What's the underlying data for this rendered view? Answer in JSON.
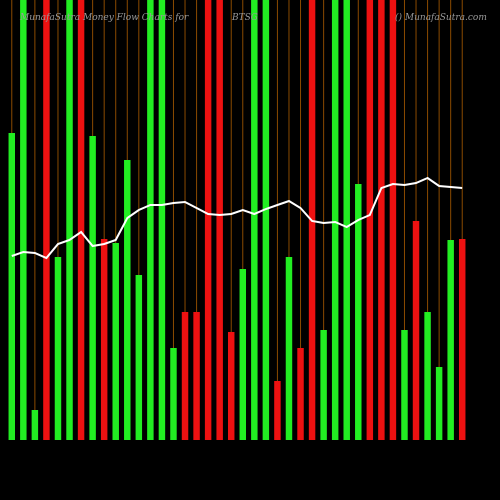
{
  "chart_data": {
    "type": "bar",
    "title": "MunafaSutra Money Flow Charts for",
    "subtitle": "BTSG",
    "source": "() MunafaSutra.com",
    "ylim": [
      0,
      440
    ],
    "grid": true,
    "grid_color": "#8a4a00",
    "line_color": "#ffffff",
    "series": [
      {
        "name": "Money Flow",
        "colors": [
          "#22ee22",
          "#22ee22",
          "#22ee22",
          "#ee1111",
          "#22ee22",
          "#22ee22",
          "#ee1111",
          "#22ee22",
          "#ee1111",
          "#22ee22",
          "#22ee22",
          "#22ee22",
          "#22ee22",
          "#22ee22",
          "#22ee22",
          "#ee1111",
          "#ee1111",
          "#ee1111",
          "#ee1111",
          "#ee1111",
          "#22ee22",
          "#22ee22",
          "#22ee22",
          "#ee1111",
          "#22ee22",
          "#ee1111",
          "#ee1111",
          "#22ee22",
          "#22ee22",
          "#22ee22",
          "#22ee22",
          "#ee1111",
          "#ee1111",
          "#ee1111",
          "#22ee22",
          "#ee1111",
          "#22ee22",
          "#22ee22",
          "#22ee22",
          "#ee1111"
        ],
        "values": [
          307,
          440,
          30,
          440,
          183,
          440,
          440,
          304,
          201,
          197,
          280,
          165,
          440,
          440,
          92,
          128,
          128,
          440,
          440,
          108,
          171,
          440,
          440,
          59,
          183,
          92,
          440,
          110,
          440,
          440,
          256,
          440,
          440,
          440,
          110,
          219,
          128,
          73,
          200,
          201
        ]
      },
      {
        "name": "Price",
        "values": [
          184,
          188,
          187,
          182,
          196,
          200,
          208,
          194,
          196,
          200,
          222,
          230,
          235,
          235,
          237,
          238,
          232,
          226,
          225,
          226,
          230,
          226,
          231,
          235,
          239,
          232,
          219,
          217,
          218,
          213,
          220,
          225,
          252,
          256,
          255,
          257,
          262,
          254,
          253,
          252
        ]
      }
    ]
  }
}
